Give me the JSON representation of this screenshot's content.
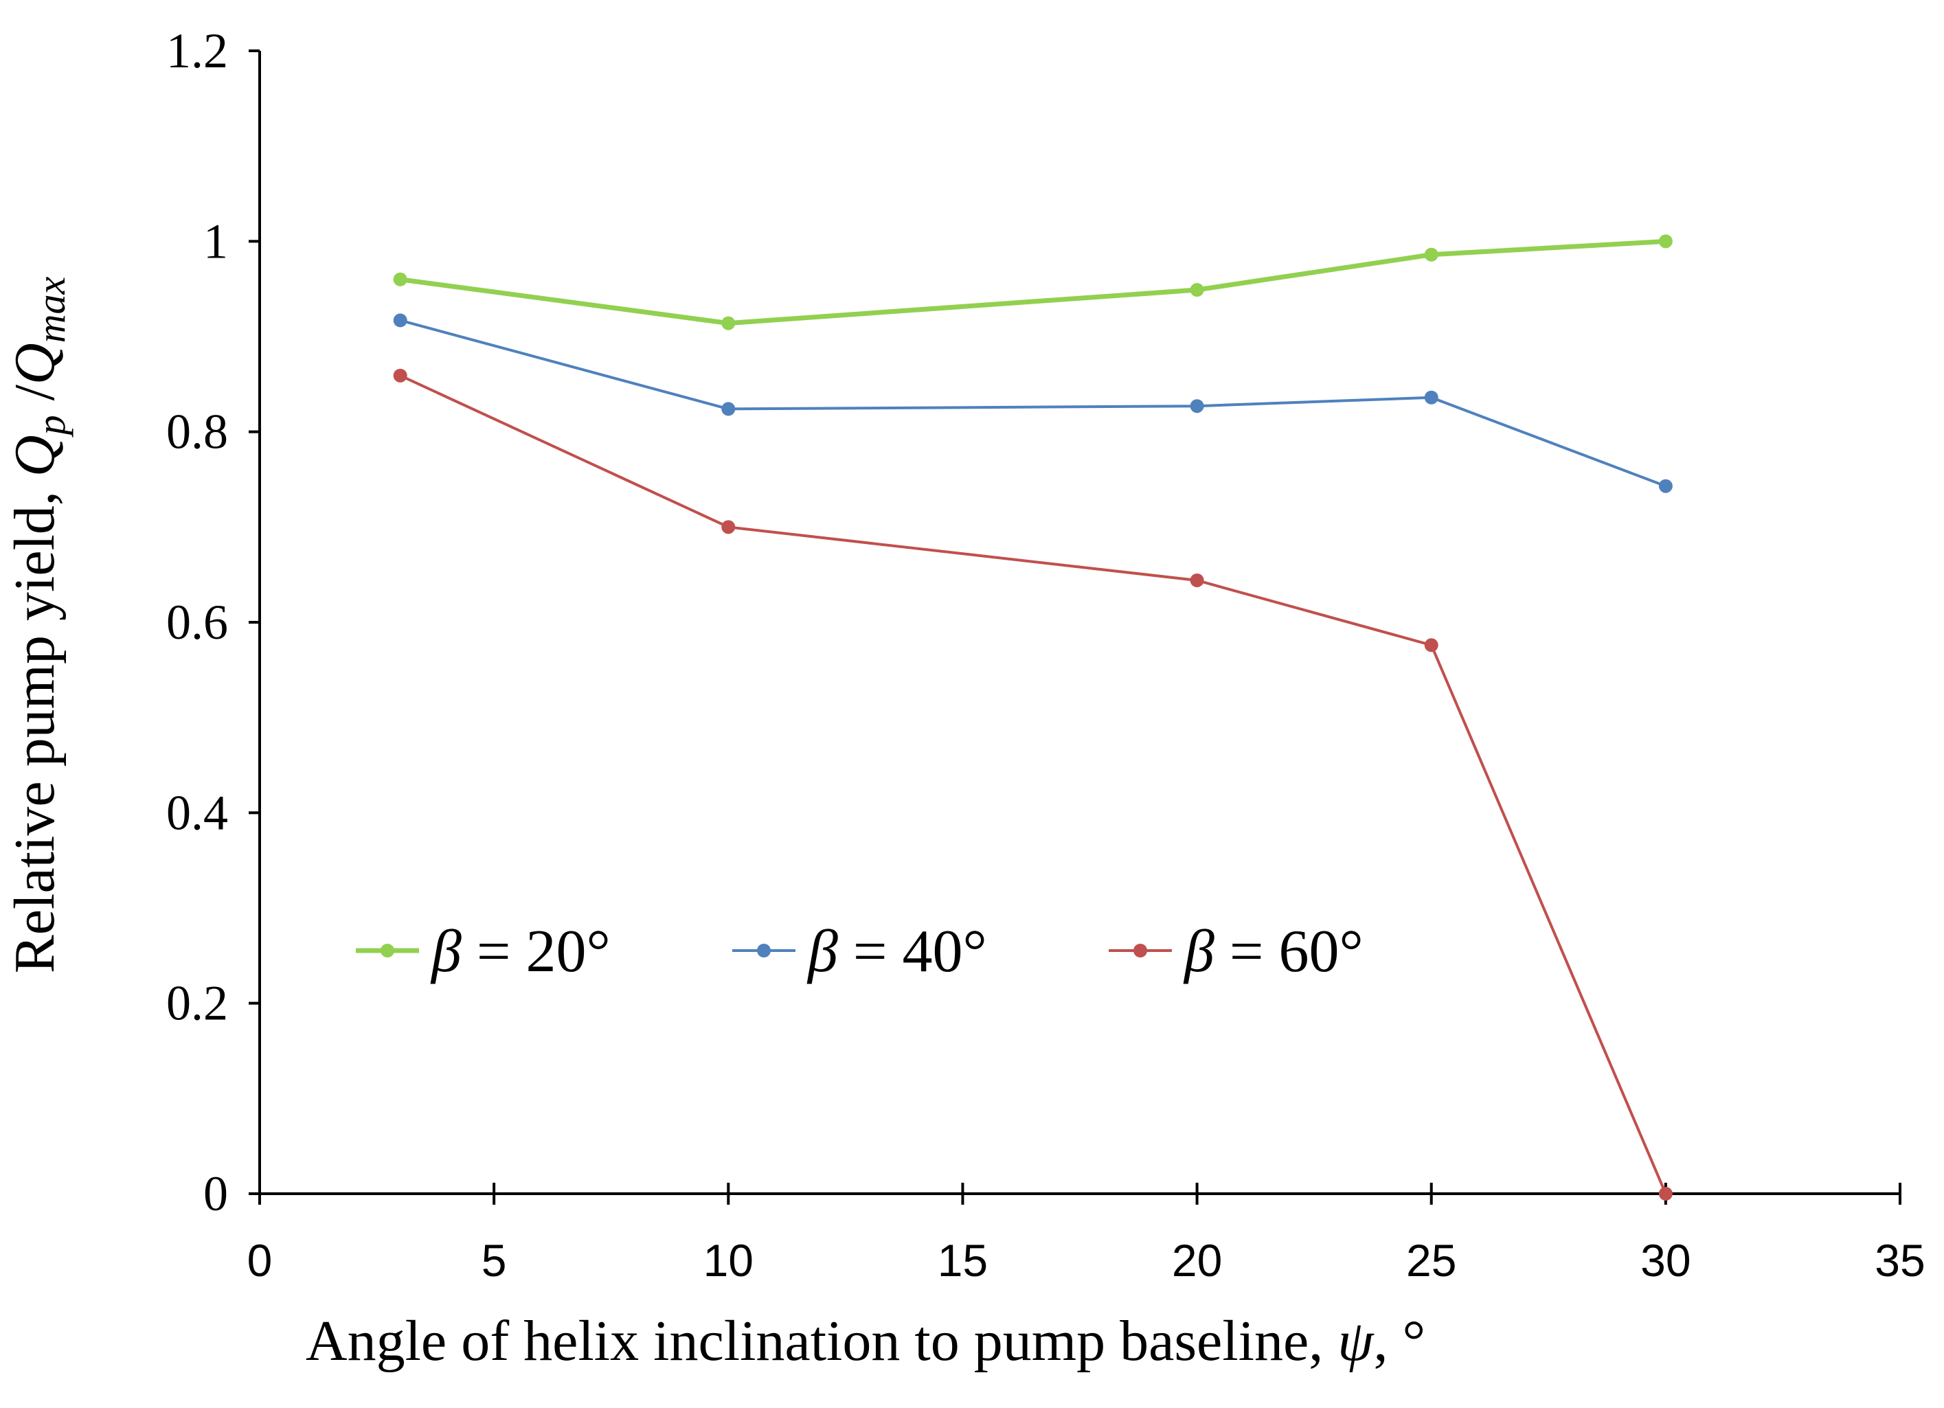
{
  "chart_data": {
    "type": "line",
    "title": "",
    "xlabel": {
      "prefix": "Angle of helix inclination to pump baseline, ",
      "symbol": "ψ",
      "suffix": ", °"
    },
    "ylabel": {
      "prefix": "Relative pump yield, ",
      "q1": "Q",
      "sub1": "p",
      "slash": " /",
      "q2": "Q",
      "sub2": "max"
    },
    "xlim": [
      0,
      35
    ],
    "ylim": [
      0,
      1.2
    ],
    "xticks": [
      0,
      5,
      10,
      15,
      20,
      25,
      30,
      35
    ],
    "xtick_labels": [
      "0",
      "5",
      "10",
      "15",
      "20",
      "25",
      "30",
      "35"
    ],
    "yticks": [
      0,
      0.2,
      0.4,
      0.6,
      0.8,
      1,
      1.2
    ],
    "ytick_labels": [
      "0",
      "0.2",
      "0.4",
      "0.6",
      "0.8",
      "1",
      "1.2"
    ],
    "grid": false,
    "legend_position": "lower-left",
    "x": [
      3,
      10,
      20,
      25,
      30
    ],
    "series": [
      {
        "name": "β = 20°",
        "symbol": "β",
        "rest": " = 20°",
        "color": "#92d050",
        "values": [
          0.96,
          0.914,
          0.949,
          0.986,
          1.0
        ]
      },
      {
        "name": "β = 40°",
        "symbol": "β",
        "rest": " = 40°",
        "color": "#4f81bd",
        "values": [
          0.917,
          0.824,
          0.827,
          0.836,
          0.743
        ]
      },
      {
        "name": "β = 60°",
        "symbol": "β",
        "rest": " = 60°",
        "color": "#c0504d",
        "values": [
          0.859,
          0.7,
          0.644,
          0.576,
          0.0
        ]
      }
    ]
  }
}
